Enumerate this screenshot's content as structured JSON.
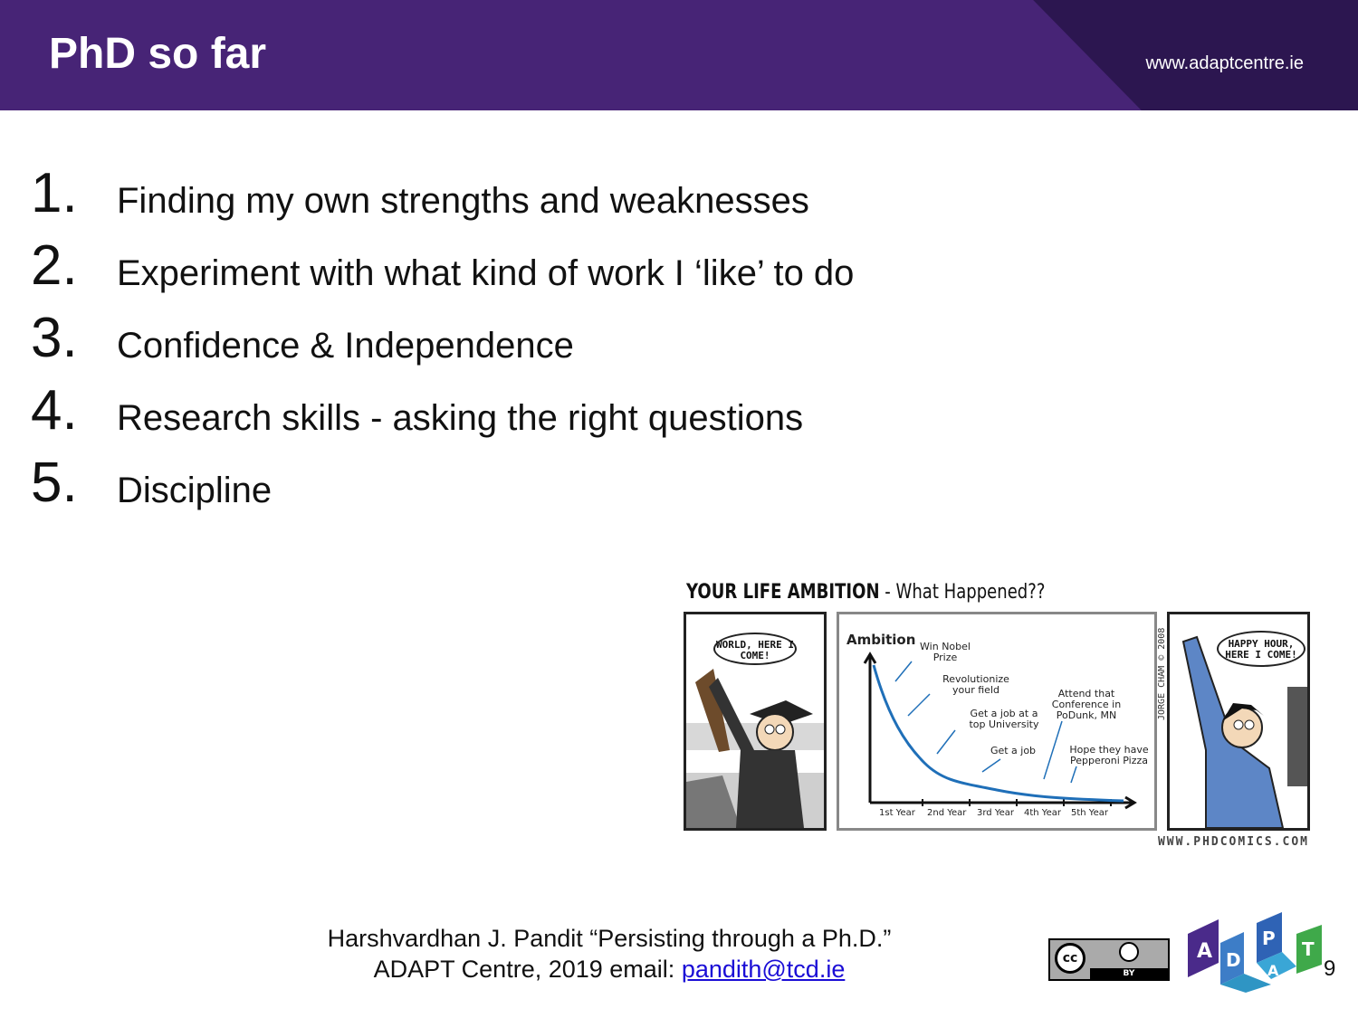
{
  "header": {
    "title": "PhD so far",
    "url": "www.adaptcentre.ie"
  },
  "list": {
    "items": [
      {
        "number": "1.",
        "text": "Finding my own strengths and weaknesses"
      },
      {
        "number": "2.",
        "text": "Experiment with what kind of work I ‘like’ to do"
      },
      {
        "number": "3.",
        "text": "Confidence & Independence"
      },
      {
        "number": "4.",
        "text": "Research skills - asking the right questions"
      },
      {
        "number": "5.",
        "text": "Discipline"
      }
    ]
  },
  "comic": {
    "title_bold": "YOUR LIFE AMBITION",
    "title_rest": " - What Happened??",
    "bubble_left": "WORLD, HERE I COME!",
    "bubble_right": "HAPPY HOUR, HERE I COME!",
    "site": "WWW.PHDCOMICS.COM",
    "credit": "JORGE CHAM © 2008",
    "chart_data": {
      "type": "line",
      "title": "",
      "ylabel": "Ambition",
      "xlabel": "",
      "categories": [
        "1st Year",
        "2nd Year",
        "3rd Year",
        "4th Year",
        "5th Year"
      ],
      "annotations": [
        "Win Nobel Prize",
        "Revolutionize your field",
        "Get a job at a top University",
        "Get a job",
        "Attend that Conference in PoDunk, MN",
        "Hope they have Pepperoni Pizza"
      ]
    }
  },
  "footer": {
    "line1": "Harshvardhan J. Pandit “Persisting through a Ph.D.”",
    "line2_prefix": "ADAPT Centre, 2019  email: ",
    "email": "pandith@tcd.ie"
  },
  "license": {
    "cc": "cc",
    "by": "BY"
  },
  "logo": {
    "letters": [
      "A",
      "D",
      "P",
      "A",
      "T"
    ]
  },
  "page_number": "9",
  "colors": {
    "header": "#472476",
    "header_shade": "#2c1650",
    "link": "#1a0dd6",
    "chart_line": "#1f6fb8"
  }
}
